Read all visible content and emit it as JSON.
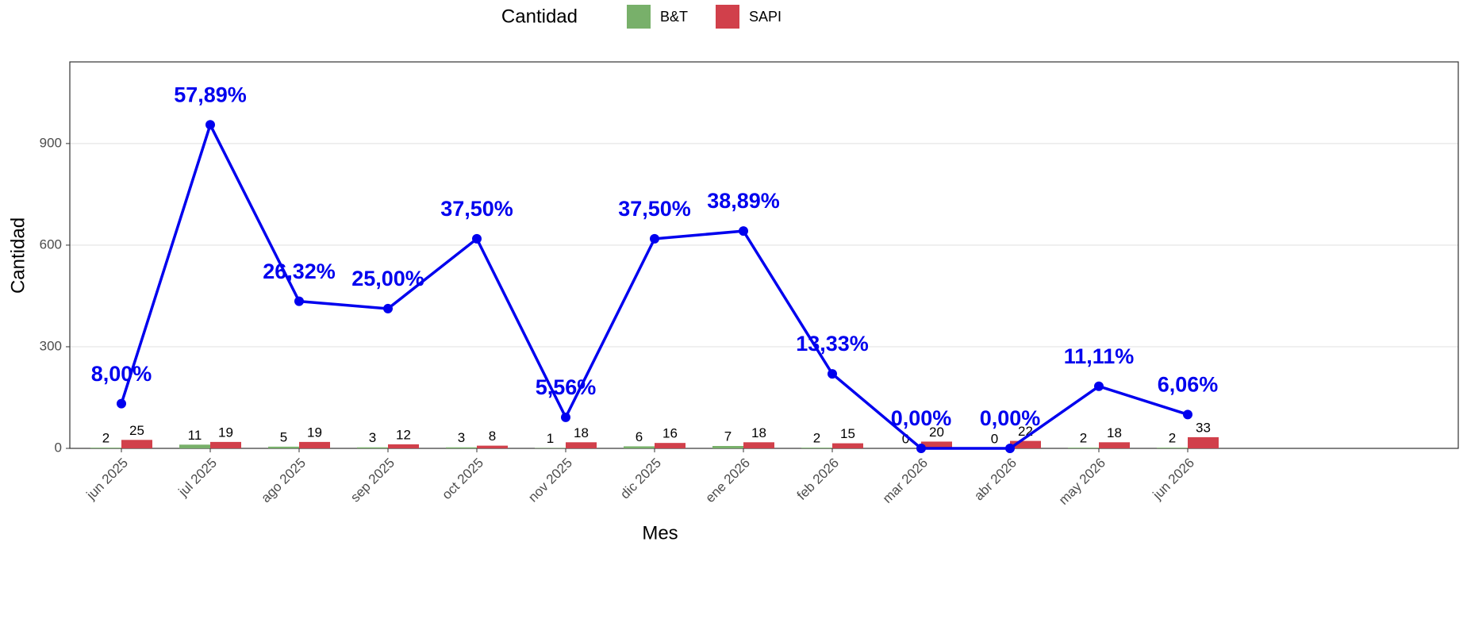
{
  "chart_data": {
    "type": "bar_line",
    "xlabel": "Mes",
    "ylabel": "Cantidad",
    "legend_title": "Cantidad",
    "legend_position": "top",
    "categories": [
      "jun 2025",
      "jul 2025",
      "ago 2025",
      "sep 2025",
      "oct 2025",
      "nov 2025",
      "dic 2025",
      "ene 2026",
      "feb 2026",
      "mar 2026",
      "abr 2026",
      "may 2026",
      "jun 2026"
    ],
    "series": [
      {
        "name": "B&T",
        "color": "#78b06a",
        "values": [
          2,
          11,
          5,
          3,
          3,
          1,
          6,
          7,
          2,
          0,
          0,
          2,
          2
        ]
      },
      {
        "name": "SAPI",
        "color": "#d1404b",
        "values": [
          25,
          19,
          19,
          12,
          8,
          18,
          16,
          18,
          15,
          20,
          22,
          18,
          33
        ]
      },
      {
        "type": "line",
        "axis": "y2",
        "color": "#0000ee",
        "values": [
          8.0,
          57.89,
          26.32,
          25.0,
          37.5,
          5.56,
          37.5,
          38.89,
          13.33,
          0.0,
          0.0,
          11.11,
          6.06
        ],
        "value_labels": [
          "8,00%",
          "57,89%",
          "26,32%",
          "25,00%",
          "37,50%",
          "5,56%",
          "37,50%",
          "38,89%",
          "13,33%",
          "0,00%",
          "0,00%",
          "11,11%",
          "6,06%"
        ]
      }
    ],
    "ylim": [
      0,
      1141
    ],
    "yticks": [
      0,
      300,
      600,
      900
    ],
    "y2lim": [
      0,
      69.15
    ],
    "grid": true
  }
}
